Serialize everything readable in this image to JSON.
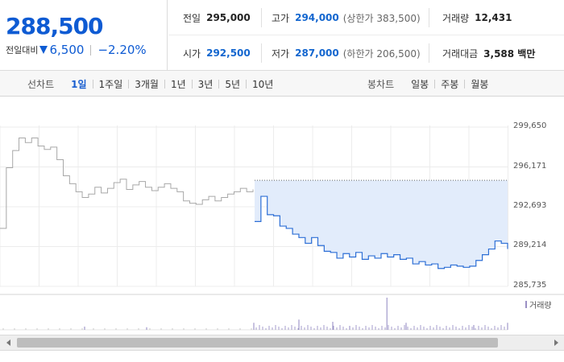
{
  "summary": {
    "current_price": "288,500",
    "change_label": "전일대비",
    "change_direction": "down",
    "change_value": "6,500",
    "change_percent": "−2.20%",
    "prev_close": {
      "label": "전일",
      "value": "295,000"
    },
    "high": {
      "label": "고가",
      "value": "294,000",
      "sub": "(상한가 383,500)"
    },
    "volume": {
      "label": "거래량",
      "value": "12,431"
    },
    "open": {
      "label": "시가",
      "value": "292,500"
    },
    "low": {
      "label": "저가",
      "value": "287,000",
      "sub": "(하한가 206,500)"
    },
    "trade_value": {
      "label": "거래대금",
      "value": "3,588 백만"
    }
  },
  "toolbar": {
    "line_chart_title": "선차트",
    "periods": [
      "1일",
      "1주일",
      "3개월",
      "1년",
      "3년",
      "5년",
      "10년"
    ],
    "active_period": "1일",
    "candle_chart_title": "봉차트",
    "candle_periods": [
      "일봉",
      "주봉",
      "월봉"
    ]
  },
  "chart_data": {
    "type": "line",
    "y_ticks": [
      "299,650",
      "296,171",
      "292,693",
      "289,214",
      "285,735"
    ],
    "ylim": [
      285735,
      299650
    ],
    "prev_close_reference": 295000,
    "previous_day_series": {
      "x_range": [
        0,
        0.32
      ],
      "values": [
        290800,
        296100,
        297600,
        298700,
        298300,
        298700,
        298000,
        297700,
        297900,
        296800,
        295400,
        294700,
        294000,
        293500,
        293800,
        294400,
        293900,
        294300,
        294800,
        295100,
        294200,
        294600,
        294900,
        294400,
        294100,
        294400,
        294700,
        294300,
        294000,
        293200,
        293000,
        292900,
        293300,
        293600,
        293200,
        293500,
        293800,
        294000,
        294300,
        294000,
        294200
      ]
    },
    "today_series": {
      "x_range": [
        0.45,
        0.9
      ],
      "values": [
        291400,
        293600,
        292000,
        291900,
        291000,
        290800,
        290300,
        290000,
        289500,
        290000,
        289300,
        288800,
        288700,
        288200,
        288600,
        288300,
        288700,
        288100,
        288400,
        288200,
        288600,
        288300,
        288500,
        288100,
        288200,
        287700,
        287900,
        287600,
        287700,
        287300,
        287400,
        287600,
        287500,
        287400,
        287500,
        288000,
        288500,
        289000,
        289700,
        289500,
        289000
      ]
    },
    "volume_legend": "거래량",
    "volume_bars": [
      {
        "x": 0.686,
        "v": 1.0
      },
      {
        "x": 0.53,
        "v": 0.32
      },
      {
        "x": 0.59,
        "v": 0.25
      },
      {
        "x": 0.45,
        "v": 0.22
      },
      {
        "x": 0.72,
        "v": 0.22
      },
      {
        "x": 0.62,
        "v": 0.12
      },
      {
        "x": 0.84,
        "v": 0.15
      },
      {
        "x": 0.9,
        "v": 0.22
      },
      {
        "x": 0.15,
        "v": 0.1
      },
      {
        "x": 0.26,
        "v": 0.08
      }
    ]
  },
  "colors": {
    "down_blue": "#0e5bd3",
    "today_line": "#2d6fd6",
    "today_fill": "#e2ecfb",
    "prev_line": "#a8a8a8",
    "grid": "#ececec",
    "volume": "#8f86c0"
  },
  "icons": {
    "change_arrow": "triangle-down-icon",
    "scroll_left": "chevron-left-icon",
    "scroll_right": "chevron-right-icon"
  }
}
